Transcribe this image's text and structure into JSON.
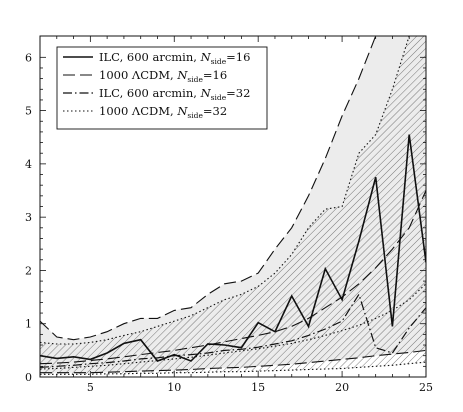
{
  "chart_data": {
    "type": "line",
    "title": "",
    "xlabel": "",
    "ylabel": "",
    "xlim": [
      2,
      25
    ],
    "ylim": [
      0,
      6.4
    ],
    "grid": false,
    "legend_position": "top-left",
    "x_ticks": [
      "5",
      "10",
      "15",
      "20",
      "25"
    ],
    "y_ticks": [
      "0",
      "1",
      "2",
      "3",
      "4",
      "5",
      "6"
    ],
    "legend": [
      {
        "label": "ILC, 600 arcmin, ",
        "nside": "16",
        "style": "solid"
      },
      {
        "label": "1000 ΛCDM, ",
        "nside": "16",
        "style": "long-dash"
      },
      {
        "label": "ILC, 600 arcmin, ",
        "nside": "32",
        "style": "dash-dot"
      },
      {
        "label": "1000 ΛCDM, ",
        "nside": "32",
        "style": "dotted"
      }
    ],
    "nside_symbol": "N",
    "nside_subscript": "side",
    "x": [
      2,
      3,
      4,
      5,
      6,
      7,
      8,
      9,
      10,
      11,
      12,
      13,
      14,
      15,
      16,
      17,
      18,
      19,
      20,
      21,
      22,
      23,
      24,
      25
    ],
    "series": [
      {
        "name": "ILC, 600 arcmin, Nside=16",
        "style": "solid",
        "values": [
          0.4,
          0.35,
          0.38,
          0.33,
          0.45,
          0.63,
          0.7,
          0.3,
          0.42,
          0.3,
          0.62,
          0.6,
          0.55,
          1.02,
          0.85,
          1.52,
          0.95,
          2.03,
          1.45,
          2.55,
          3.75,
          0.95,
          4.55,
          2.15
        ]
      },
      {
        "name": "1000 ΛCDM, Nside=16",
        "style": "long-dash",
        "band_upper": [
          1.05,
          0.75,
          0.7,
          0.75,
          0.85,
          1.0,
          1.1,
          1.1,
          1.25,
          1.3,
          1.55,
          1.75,
          1.8,
          1.95,
          2.4,
          2.8,
          3.4,
          4.1,
          4.9,
          5.6,
          6.4,
          6.4,
          6.4,
          6.4
        ],
        "band_lower": [
          0.08,
          0.08,
          0.08,
          0.08,
          0.09,
          0.1,
          0.11,
          0.12,
          0.13,
          0.14,
          0.16,
          0.17,
          0.18,
          0.2,
          0.22,
          0.24,
          0.27,
          0.3,
          0.33,
          0.36,
          0.4,
          0.43,
          0.46,
          0.5
        ],
        "mean": [
          0.25,
          0.26,
          0.28,
          0.31,
          0.34,
          0.38,
          0.42,
          0.46,
          0.5,
          0.55,
          0.6,
          0.66,
          0.72,
          0.78,
          0.85,
          0.95,
          1.1,
          1.3,
          1.5,
          1.75,
          2.05,
          2.4,
          2.8,
          3.5
        ]
      },
      {
        "name": "ILC, 600 arcmin, Nside=32",
        "style": "dash-dot",
        "values": [
          0.18,
          0.2,
          0.22,
          0.25,
          0.27,
          0.3,
          0.34,
          0.36,
          0.4,
          0.42,
          0.45,
          0.5,
          0.52,
          0.56,
          0.62,
          0.68,
          0.78,
          0.9,
          1.05,
          1.55,
          0.55,
          0.45,
          0.92,
          1.3
        ]
      },
      {
        "name": "1000 ΛCDM, Nside=32",
        "style": "dotted",
        "band_upper": [
          0.65,
          0.62,
          0.62,
          0.65,
          0.7,
          0.78,
          0.85,
          0.95,
          1.05,
          1.15,
          1.3,
          1.45,
          1.55,
          1.7,
          1.95,
          2.3,
          2.8,
          3.15,
          3.2,
          4.2,
          4.55,
          5.4,
          6.4,
          6.4
        ],
        "band_lower": [
          0.05,
          0.05,
          0.05,
          0.05,
          0.06,
          0.06,
          0.07,
          0.07,
          0.08,
          0.08,
          0.09,
          0.1,
          0.1,
          0.11,
          0.12,
          0.13,
          0.14,
          0.15,
          0.16,
          0.18,
          0.2,
          0.22,
          0.25,
          0.28
        ],
        "mean": [
          0.15,
          0.16,
          0.18,
          0.2,
          0.22,
          0.25,
          0.28,
          0.31,
          0.34,
          0.37,
          0.41,
          0.45,
          0.49,
          0.53,
          0.58,
          0.63,
          0.7,
          0.78,
          0.87,
          0.97,
          1.1,
          1.25,
          1.45,
          1.75
        ]
      }
    ]
  }
}
